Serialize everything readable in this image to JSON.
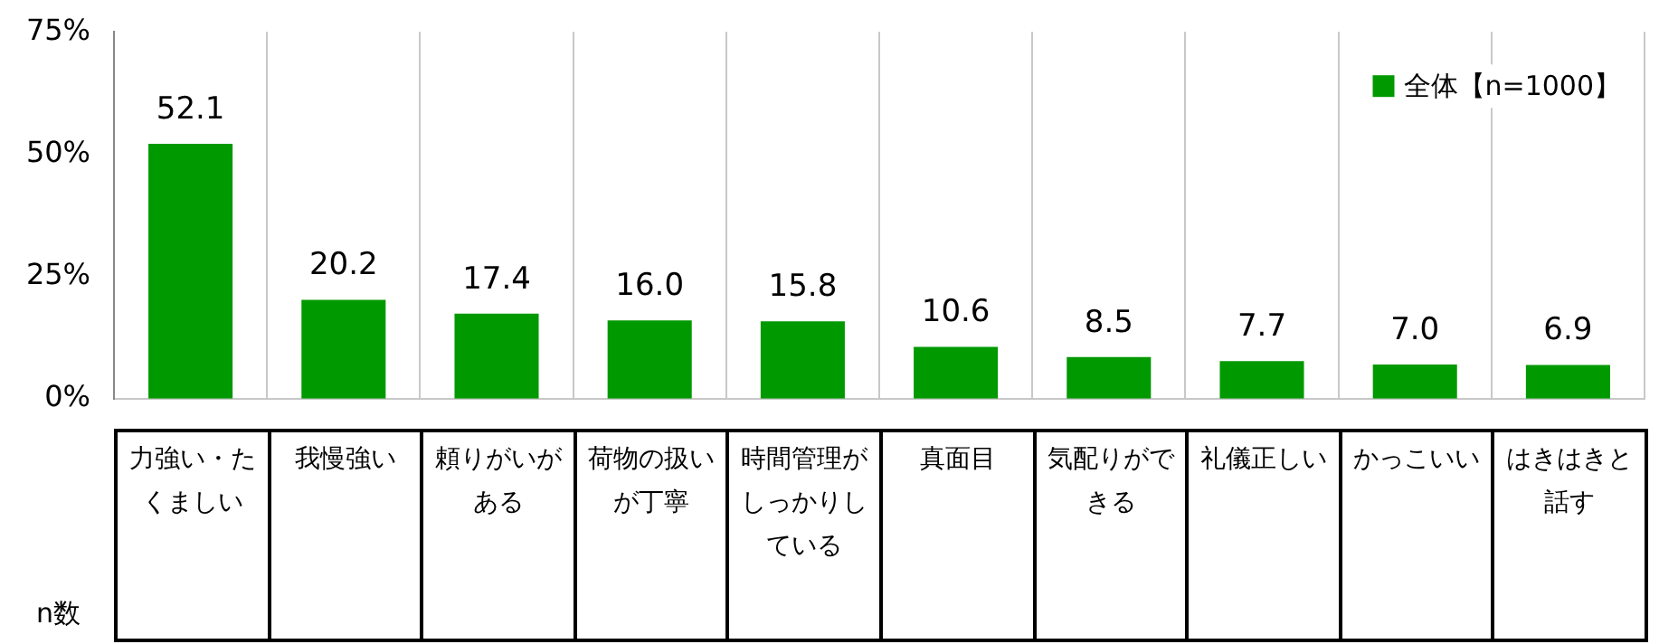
{
  "chart_data": {
    "type": "bar",
    "categories": [
      "力強い・たくましい",
      "我慢強い",
      "頼りがいがある",
      "荷物の扱いが丁寧",
      "時間管理がしっかりしている",
      "真面目",
      "気配りができる",
      "礼儀正しい",
      "かっこいい",
      "はきはきと話す"
    ],
    "series": [
      {
        "name": "全体【n=1000】",
        "color": "#009900",
        "values": [
          52.1,
          20.2,
          17.4,
          16.0,
          15.8,
          10.6,
          8.5,
          7.7,
          7.0,
          6.9
        ],
        "value_labels": [
          "52.1",
          "20.2",
          "17.4",
          "16.0",
          "15.8",
          "10.6",
          "8.5",
          "7.7",
          "7.0",
          "6.9"
        ]
      }
    ],
    "ylim": [
      0,
      75
    ],
    "yticks": [
      {
        "value": 0,
        "label": "0%"
      },
      {
        "value": 25,
        "label": "25%"
      },
      {
        "value": 50,
        "label": "50%"
      },
      {
        "value": 75,
        "label": "75%"
      }
    ],
    "grid": "x",
    "legend": "top right",
    "annotations": [
      "n数"
    ]
  }
}
